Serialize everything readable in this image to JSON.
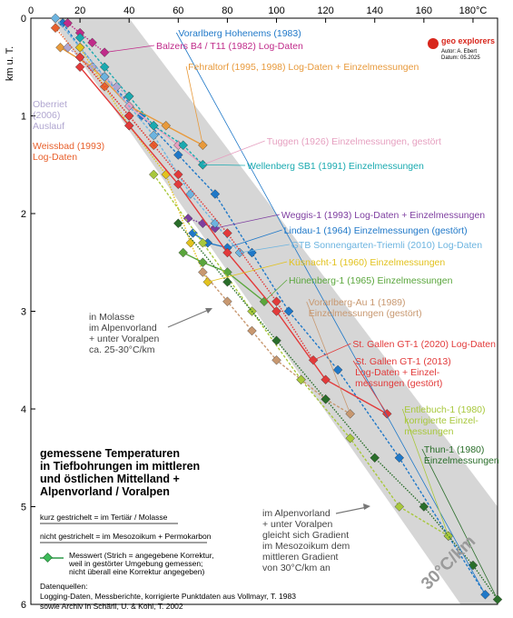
{
  "chart_data": {
    "type": "line",
    "xlabel": "180°C",
    "ylabel": "km u. T.",
    "xlim": [
      0,
      190
    ],
    "ylim": [
      0,
      6
    ],
    "x_ticks": [
      "0",
      "20",
      "40",
      "60",
      "80",
      "100",
      "120",
      "140",
      "160",
      "180°C"
    ],
    "y_ticks": [
      "0",
      "1",
      "2",
      "3",
      "4",
      "5",
      "6"
    ],
    "title_lines": [
      "gemessene Temperaturen",
      "in Tiefbohrungen im mittleren",
      "und östlichen Mittelland +",
      "Alpenvorland / Voralpen"
    ],
    "logo": {
      "name": "geo explorers",
      "author": "Autor: A. Ebert",
      "date": "Datum: 05.2025"
    },
    "band": {
      "label": "30°C/km"
    },
    "series": [
      {
        "name": "Vorarlberg Hohenems (1983)",
        "color": "#1f78c8",
        "x": [
          13,
          20,
          30,
          45,
          60,
          75,
          90,
          105,
          125,
          150,
          170,
          185
        ],
        "y": [
          0.05,
          0.3,
          0.6,
          1.0,
          1.4,
          1.8,
          2.4,
          3.0,
          3.6,
          4.5,
          5.3,
          5.9
        ]
      },
      {
        "name": "Balzers B4 / T11 (1982) Log-Daten",
        "color": "#c02b8a",
        "x": [
          15,
          20,
          25,
          30
        ],
        "y": [
          0.05,
          0.15,
          0.25,
          0.35
        ]
      },
      {
        "name": "Fehraltorf (1995, 1998) Log-Daten + Einzelmessungen",
        "color": "#e89a3c",
        "x": [
          12,
          25,
          40,
          55,
          70
        ],
        "y": [
          0.3,
          0.5,
          0.9,
          1.1,
          1.3
        ]
      },
      {
        "name": "Oberriet (2006) Auslauf",
        "color": "#b0a6d0",
        "x": [
          15,
          25,
          35,
          40
        ],
        "y": [
          0.3,
          0.5,
          0.7,
          0.8
        ]
      },
      {
        "name": "Weissbad (1993) Log-Daten",
        "color": "#e8602c",
        "x": [
          10,
          20,
          30,
          40,
          50
        ],
        "y": [
          0.1,
          0.4,
          0.7,
          1.0,
          1.3
        ]
      },
      {
        "name": "Tuggen (1926) Einzelmessungen, gestört",
        "color": "#e6a0c0",
        "x": [
          30,
          40,
          50,
          60,
          70
        ],
        "y": [
          0.6,
          0.9,
          1.1,
          1.3,
          1.5
        ]
      },
      {
        "name": "Wellenberg SB1 (1991) Einzelmessungen",
        "color": "#1aaab0",
        "x": [
          20,
          30,
          40,
          50,
          62,
          70
        ],
        "y": [
          0.2,
          0.5,
          0.8,
          1.1,
          1.3,
          1.5
        ]
      },
      {
        "name": "Weggis-1 (1993) Log-Daten + Einzelmessungen",
        "color": "#7e3ea0",
        "x": [
          64,
          70,
          75
        ],
        "y": [
          2.05,
          2.1,
          2.15
        ]
      },
      {
        "name": "Lindau-1 (1964) Einzelmessungen (gestört)",
        "color": "#1f78c8",
        "x": [
          66,
          72,
          80
        ],
        "y": [
          2.2,
          2.3,
          2.35
        ]
      },
      {
        "name": "GTB Sonnengarten-Triemli (2010) Log-Daten",
        "color": "#6cb4e0",
        "x": [
          10,
          30,
          50,
          65,
          75,
          85
        ],
        "y": [
          0.0,
          0.6,
          1.2,
          1.8,
          2.1,
          2.4
        ]
      },
      {
        "name": "Küsnacht-1 (1960) Einzelmessungen",
        "color": "#e2c21e",
        "x": [
          20,
          40,
          55,
          65,
          72
        ],
        "y": [
          0.3,
          1.1,
          1.6,
          2.3,
          2.7
        ]
      },
      {
        "name": "Hünenberg-1 (1965) Einzelmessungen",
        "color": "#5aa63c",
        "x": [
          62,
          70,
          80,
          95
        ],
        "y": [
          2.4,
          2.5,
          2.6,
          2.9
        ]
      },
      {
        "name": "Vorarlberg-Au 1 (1989) Einzelmessungen (gestört)",
        "color": "#c89870",
        "x": [
          70,
          80,
          90,
          100,
          110,
          120,
          130
        ],
        "y": [
          2.6,
          2.9,
          3.2,
          3.5,
          3.7,
          3.9,
          4.05
        ]
      },
      {
        "name": "St. Gallen GT-1 (2020) Log-Daten",
        "color": "#e23a3a",
        "x": [
          20,
          40,
          60,
          80,
          100,
          115
        ],
        "y": [
          0.4,
          1.0,
          1.6,
          2.2,
          2.9,
          3.5
        ]
      },
      {
        "name": "St. Gallen GT-1 (2013) Log-Daten + Einzel-messungen (gestört)",
        "color": "#e23a3a",
        "x": [
          20,
          40,
          60,
          80,
          100,
          120,
          145
        ],
        "y": [
          0.5,
          1.1,
          1.7,
          2.4,
          3.0,
          3.7,
          4.05
        ]
      },
      {
        "name": "Entlebuch-1 (1980) korrigierte Einzel-messungen",
        "color": "#a8c83c",
        "x": [
          50,
          70,
          90,
          110,
          130,
          150,
          170
        ],
        "y": [
          1.6,
          2.3,
          3.0,
          3.7,
          4.3,
          5.0,
          5.3
        ]
      },
      {
        "name": "Thun-1 (1980) Einzelmessungen",
        "color": "#2a6e2a",
        "x": [
          60,
          80,
          100,
          120,
          140,
          160,
          180,
          190
        ],
        "y": [
          2.1,
          2.7,
          3.3,
          3.9,
          4.5,
          5.0,
          5.6,
          5.95
        ]
      }
    ],
    "annotations": [
      {
        "text": [
          "in Molasse",
          "im Alpenvorland",
          "+ unter Voralpen",
          "ca. 25-30°C/km"
        ]
      },
      {
        "text": [
          "im Alpenvorland",
          "+ unter Voralpen",
          "gleicht sich Gradient",
          "im Mesozoikum dem",
          "mittleren Gradient",
          "von 30°C/km an"
        ]
      }
    ],
    "legend_notes": {
      "dashed_short": "kurz gestrichelt = im Tertiär / Molasse",
      "dashed_long": "nicht gestrichelt = im Mesozoikum + Permokarbon",
      "measurement": [
        "Messwert (Strich = angegebene Korrektur,",
        "weil in gestörter Umgebung gemessen;",
        "nicht überall eine Korrektur angegeben)"
      ]
    },
    "sources": [
      "Datenquellen:",
      "Logging-Daten, Messberichte, korrigierte Punktdaten aus Vollmayr, T. 1983",
      "sowie Archiv in Schärli, U. & Kohl, T. 2002"
    ]
  }
}
